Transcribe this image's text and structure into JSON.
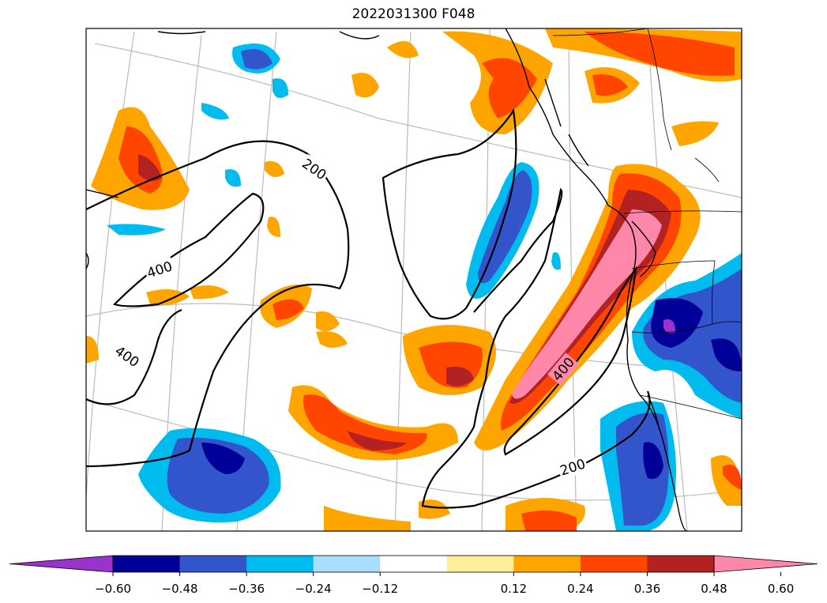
{
  "title": "2022031300 F048",
  "colorbar": {
    "ticks": [
      "−0.60",
      "−0.48",
      "−0.36",
      "−0.24",
      "−0.12",
      "0.12",
      "0.24",
      "0.36",
      "0.48",
      "0.60"
    ],
    "colors": [
      "#9933cc",
      "#000099",
      "#3355cc",
      "#00bbee",
      "#aaddff",
      "#ffffff",
      "#ffee99",
      "#ffa500",
      "#ff4500",
      "#b22222",
      "#ff88aa"
    ],
    "extend": "both"
  },
  "contour_labels": [
    "200",
    "400",
    "400",
    "400",
    "200"
  ],
  "palette": {
    "orange": "#ffa500",
    "red_orange": "#ff4500",
    "dark_red": "#b22222",
    "pink": "#ff88aa",
    "light_blue": "#00bbee",
    "blue": "#3355cc",
    "navy": "#000099",
    "purple": "#9933cc"
  }
}
